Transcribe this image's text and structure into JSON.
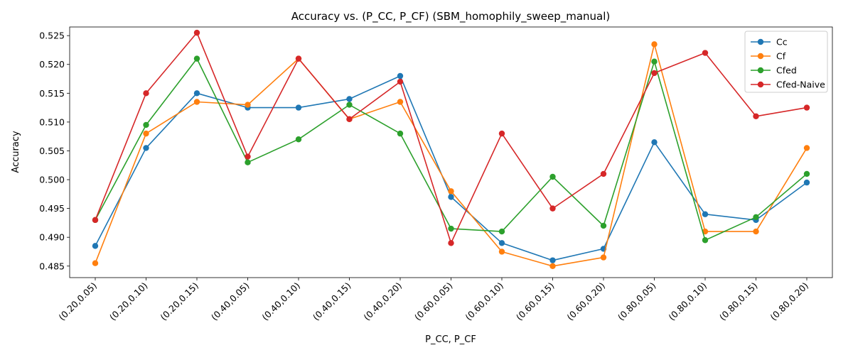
{
  "chart_data": {
    "type": "line",
    "title": "Accuracy vs. (P_CC, P_CF) (SBM_homophily_sweep_manual)",
    "xlabel": "P_CC, P_CF",
    "ylabel": "Accuracy",
    "ylim": [
      0.483,
      0.5265
    ],
    "yticks": [
      "0.485",
      "0.490",
      "0.495",
      "0.500",
      "0.505",
      "0.510",
      "0.515",
      "0.520",
      "0.525"
    ],
    "categories": [
      "(0.20,0.05)",
      "(0.20,0.10)",
      "(0.20,0.15)",
      "(0.40,0.05)",
      "(0.40,0.10)",
      "(0.40,0.15)",
      "(0.40,0.20)",
      "(0.60,0.05)",
      "(0.60,0.10)",
      "(0.60,0.15)",
      "(0.60,0.20)",
      "(0.80,0.05)",
      "(0.80,0.10)",
      "(0.80,0.15)",
      "(0.80,0.20)"
    ],
    "grid": false,
    "legend_position": "top-right",
    "series": [
      {
        "name": "Cc",
        "color": "#1f77b4",
        "values": [
          0.4885,
          0.5055,
          0.515,
          0.5125,
          0.5125,
          0.514,
          0.518,
          0.497,
          0.489,
          0.486,
          0.488,
          0.5065,
          0.494,
          0.493,
          0.4995
        ]
      },
      {
        "name": "Cf",
        "color": "#ff7f0e",
        "values": [
          0.4855,
          0.508,
          0.5135,
          0.513,
          0.521,
          0.5105,
          0.5135,
          0.498,
          0.4875,
          0.485,
          0.4865,
          0.5235,
          0.491,
          0.491,
          0.5055
        ]
      },
      {
        "name": "Cfed",
        "color": "#2ca02c",
        "values": [
          0.493,
          0.5095,
          0.521,
          0.503,
          0.507,
          0.513,
          0.508,
          0.4915,
          0.491,
          0.5005,
          0.492,
          0.5205,
          0.4895,
          0.4935,
          0.501
        ]
      },
      {
        "name": "Cfed-Naive",
        "color": "#d62728",
        "values": [
          0.493,
          0.515,
          0.5255,
          0.504,
          0.521,
          0.5105,
          0.517,
          0.489,
          0.508,
          0.495,
          0.501,
          0.5185,
          0.522,
          0.511,
          0.5125
        ]
      }
    ]
  }
}
